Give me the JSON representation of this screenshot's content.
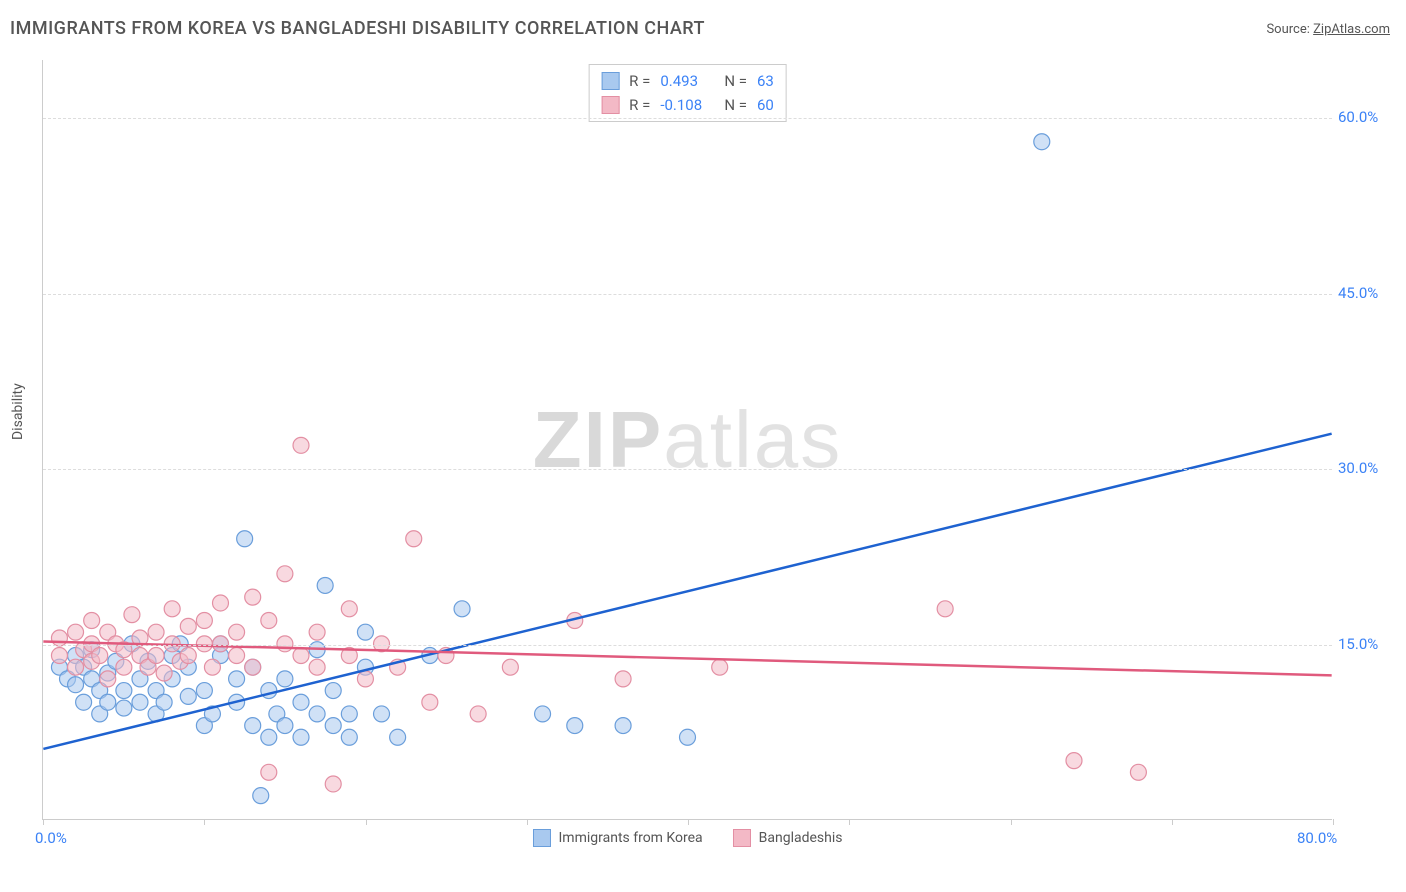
{
  "title": "IMMIGRANTS FROM KOREA VS BANGLADESHI DISABILITY CORRELATION CHART",
  "source_label": "Source:",
  "source_name": "ZipAtlas.com",
  "y_axis_label": "Disability",
  "watermark_a": "ZIP",
  "watermark_b": "atlas",
  "chart": {
    "type": "scatter",
    "xlim": [
      0,
      80
    ],
    "ylim": [
      0,
      65
    ],
    "x_ticks": [
      0,
      10,
      20,
      30,
      40,
      50,
      60,
      70,
      80
    ],
    "x_tick_labels": {
      "0": "0.0%",
      "80": "80.0%"
    },
    "y_ticks": [
      15,
      30,
      45,
      60
    ],
    "y_tick_labels": {
      "15": "15.0%",
      "30": "30.0%",
      "45": "45.0%",
      "60": "60.0%"
    },
    "background_color": "#ffffff",
    "grid_color": "#dddddd",
    "axis_color": "#cccccc",
    "tick_label_color": "#3b82f6",
    "series": [
      {
        "name": "Immigrants from Korea",
        "color_fill": "#a9c9ef",
        "color_stroke": "#6a9edb",
        "line_color": "#1e62d0",
        "marker_radius": 8,
        "fill_opacity": 0.55,
        "r_label": "R =",
        "r_value": "0.493",
        "n_label": "N =",
        "n_value": "63",
        "trend": {
          "x1": 0,
          "y1": 6,
          "x2": 80,
          "y2": 33
        },
        "points": [
          [
            1,
            13
          ],
          [
            1.5,
            12
          ],
          [
            2,
            11.5
          ],
          [
            2,
            14
          ],
          [
            2.5,
            10
          ],
          [
            2.5,
            13
          ],
          [
            3,
            12
          ],
          [
            3,
            14.5
          ],
          [
            3.5,
            9
          ],
          [
            3.5,
            11
          ],
          [
            4,
            10
          ],
          [
            4,
            12.5
          ],
          [
            4.5,
            13.5
          ],
          [
            5,
            9.5
          ],
          [
            5,
            11
          ],
          [
            5.5,
            15
          ],
          [
            6,
            10
          ],
          [
            6,
            12
          ],
          [
            6.5,
            13.5
          ],
          [
            7,
            9
          ],
          [
            7,
            11
          ],
          [
            7.5,
            10
          ],
          [
            8,
            12
          ],
          [
            8,
            14
          ],
          [
            8.5,
            15
          ],
          [
            9,
            10.5
          ],
          [
            9,
            13
          ],
          [
            10,
            8
          ],
          [
            10,
            11
          ],
          [
            10.5,
            9
          ],
          [
            11,
            14
          ],
          [
            11,
            15
          ],
          [
            12,
            10
          ],
          [
            12,
            12
          ],
          [
            12.5,
            24
          ],
          [
            13,
            8
          ],
          [
            13,
            13
          ],
          [
            13.5,
            2
          ],
          [
            14,
            7
          ],
          [
            14,
            11
          ],
          [
            14.5,
            9
          ],
          [
            15,
            8
          ],
          [
            15,
            12
          ],
          [
            16,
            10
          ],
          [
            16,
            7
          ],
          [
            17,
            9
          ],
          [
            17,
            14.5
          ],
          [
            17.5,
            20
          ],
          [
            18,
            8
          ],
          [
            18,
            11
          ],
          [
            19,
            7
          ],
          [
            19,
            9
          ],
          [
            20,
            16
          ],
          [
            20,
            13
          ],
          [
            21,
            9
          ],
          [
            22,
            7
          ],
          [
            24,
            14
          ],
          [
            26,
            18
          ],
          [
            31,
            9
          ],
          [
            33,
            8
          ],
          [
            36,
            8
          ],
          [
            40,
            7
          ],
          [
            62,
            58
          ]
        ]
      },
      {
        "name": "Bangladeshis",
        "color_fill": "#f3b9c6",
        "color_stroke": "#e38fa3",
        "line_color": "#e05a7d",
        "marker_radius": 8,
        "fill_opacity": 0.55,
        "r_label": "R =",
        "r_value": "-0.108",
        "n_label": "N =",
        "n_value": "60",
        "trend": {
          "x1": 0,
          "y1": 15.2,
          "x2": 80,
          "y2": 12.3
        },
        "points": [
          [
            1,
            14
          ],
          [
            1,
            15.5
          ],
          [
            2,
            13
          ],
          [
            2,
            16
          ],
          [
            2.5,
            14.5
          ],
          [
            3,
            13.5
          ],
          [
            3,
            15
          ],
          [
            3,
            17
          ],
          [
            3.5,
            14
          ],
          [
            4,
            12
          ],
          [
            4,
            16
          ],
          [
            4.5,
            15
          ],
          [
            5,
            13
          ],
          [
            5,
            14.5
          ],
          [
            5.5,
            17.5
          ],
          [
            6,
            14
          ],
          [
            6,
            15.5
          ],
          [
            6.5,
            13
          ],
          [
            7,
            16
          ],
          [
            7,
            14
          ],
          [
            7.5,
            12.5
          ],
          [
            8,
            18
          ],
          [
            8,
            15
          ],
          [
            8.5,
            13.5
          ],
          [
            9,
            16.5
          ],
          [
            9,
            14
          ],
          [
            10,
            17
          ],
          [
            10,
            15
          ],
          [
            10.5,
            13
          ],
          [
            11,
            18.5
          ],
          [
            11,
            15
          ],
          [
            12,
            14
          ],
          [
            12,
            16
          ],
          [
            13,
            19
          ],
          [
            13,
            13
          ],
          [
            14,
            17
          ],
          [
            14,
            4
          ],
          [
            15,
            15
          ],
          [
            15,
            21
          ],
          [
            16,
            14
          ],
          [
            16,
            32
          ],
          [
            17,
            13
          ],
          [
            17,
            16
          ],
          [
            18,
            3
          ],
          [
            19,
            14
          ],
          [
            19,
            18
          ],
          [
            20,
            12
          ],
          [
            21,
            15
          ],
          [
            22,
            13
          ],
          [
            23,
            24
          ],
          [
            24,
            10
          ],
          [
            25,
            14
          ],
          [
            27,
            9
          ],
          [
            29,
            13
          ],
          [
            33,
            17
          ],
          [
            36,
            12
          ],
          [
            42,
            13
          ],
          [
            56,
            18
          ],
          [
            64,
            5
          ],
          [
            68,
            4
          ]
        ]
      }
    ]
  }
}
